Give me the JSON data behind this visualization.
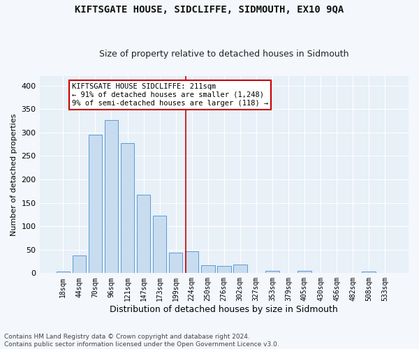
{
  "title": "KIFTSGATE HOUSE, SIDCLIFFE, SIDMOUTH, EX10 9QA",
  "subtitle": "Size of property relative to detached houses in Sidmouth",
  "xlabel": "Distribution of detached houses by size in Sidmouth",
  "ylabel": "Number of detached properties",
  "bar_labels": [
    "18sqm",
    "44sqm",
    "70sqm",
    "96sqm",
    "121sqm",
    "147sqm",
    "173sqm",
    "199sqm",
    "224sqm",
    "250sqm",
    "276sqm",
    "302sqm",
    "327sqm",
    "353sqm",
    "379sqm",
    "405sqm",
    "430sqm",
    "456sqm",
    "482sqm",
    "508sqm",
    "533sqm"
  ],
  "bar_values": [
    3,
    37,
    296,
    326,
    278,
    168,
    122,
    44,
    46,
    17,
    16,
    19,
    0,
    5,
    0,
    5,
    0,
    1,
    0,
    3,
    0
  ],
  "bar_color": "#c8dcf0",
  "bar_edge_color": "#5b9bd5",
  "annotation_text": "KIFTSGATE HOUSE SIDCLIFFE: 211sqm\n← 91% of detached houses are smaller (1,248)\n9% of semi-detached houses are larger (118) →",
  "annotation_box_color": "#ffffff",
  "annotation_border_color": "#cc0000",
  "vline_color": "#cc0000",
  "footnote": "Contains HM Land Registry data © Crown copyright and database right 2024.\nContains public sector information licensed under the Open Government Licence v3.0.",
  "ylim": [
    0,
    420
  ],
  "yticks": [
    0,
    50,
    100,
    150,
    200,
    250,
    300,
    350,
    400
  ],
  "background_color": "#e8f0f8",
  "fig_background_color": "#f4f7fb",
  "grid_color": "#ffffff",
  "title_fontsize": 10,
  "subtitle_fontsize": 9,
  "xlabel_fontsize": 9,
  "ylabel_fontsize": 8,
  "tick_fontsize": 7,
  "annot_fontsize": 7.5,
  "footnote_fontsize": 6.5,
  "vline_x": 7.62
}
